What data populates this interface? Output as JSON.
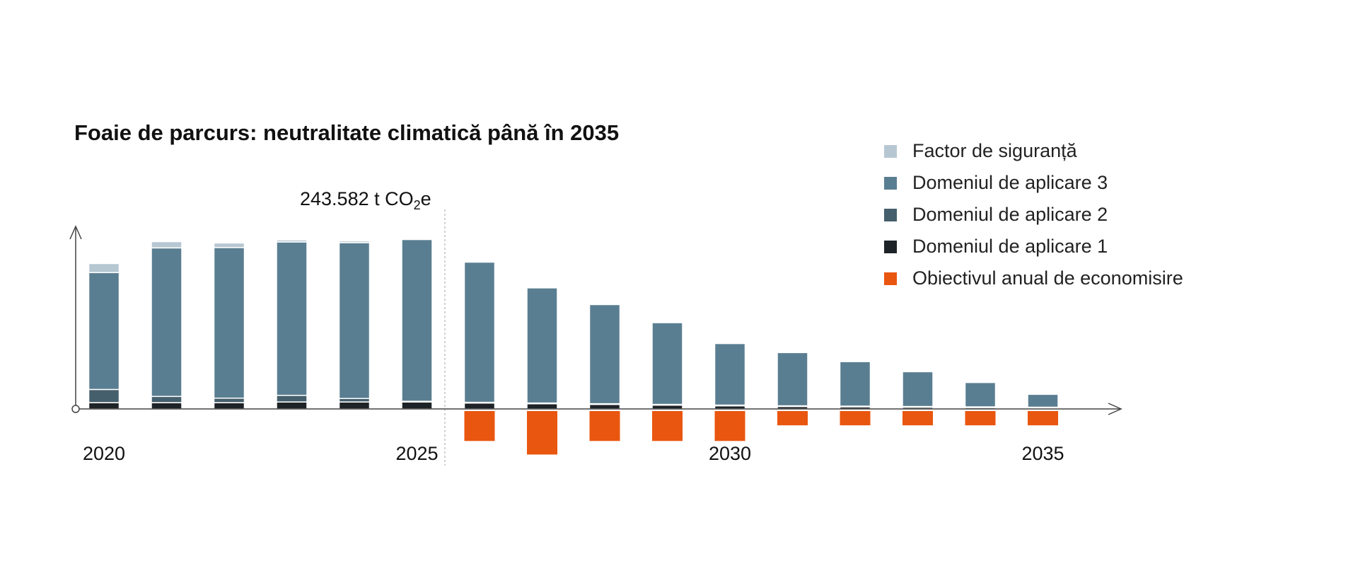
{
  "chart_data": {
    "type": "bar",
    "title": "Foaie de parcurs: neutralitate climatică până în 2035",
    "annotation": {
      "prefix": "243.582 t CO",
      "subscript": "2",
      "suffix": "e"
    },
    "x_tick_labels": [
      "2020",
      "2025",
      "2030",
      "2035"
    ],
    "categories": [
      "2020",
      "2021",
      "2022",
      "2023",
      "2024",
      "2025",
      "2026",
      "2027",
      "2028",
      "2029",
      "2030",
      "2031",
      "2032",
      "2033",
      "2034",
      "2035"
    ],
    "ylim": [
      -60000,
      260000
    ],
    "legend_position": "top-right",
    "colors": {
      "safety": "#b7c7d2",
      "scope3": "#5a7e91",
      "scope2": "#455f6c",
      "scope1": "#1d2327",
      "savings": "#e9560f",
      "axis": "#444444",
      "divider": "#c4c4c4"
    },
    "legend": [
      {
        "key": "safety",
        "label": "Factor de siguranță"
      },
      {
        "key": "scope3",
        "label": "Domeniul de aplicare 3"
      },
      {
        "key": "scope2",
        "label": "Domeniul de aplicare 2"
      },
      {
        "key": "scope1",
        "label": "Domeniul de aplicare 1"
      },
      {
        "key": "savings",
        "label": "Obiectivul anual de economisire"
      }
    ],
    "series": [
      {
        "name": "Domeniul de aplicare 1",
        "key": "scope1",
        "values": [
          9000,
          9000,
          9000,
          10000,
          10000,
          10000,
          8500,
          7500,
          6500,
          5500,
          4500,
          3500,
          3000,
          2500,
          2000,
          1500
        ]
      },
      {
        "name": "Domeniul de aplicare 2",
        "key": "scope2",
        "values": [
          19000,
          9000,
          6500,
          9500,
          5000,
          1000,
          1000,
          1000,
          1000,
          1000,
          1000,
          1000,
          1000,
          1000,
          1000,
          1000
        ]
      },
      {
        "name": "Domeniul de aplicare 3",
        "key": "scope3",
        "values": [
          168000,
          213500,
          216500,
          220500,
          224000,
          232500,
          201500,
          165500,
          142500,
          117500,
          88500,
          76500,
          64000,
          50000,
          35000,
          18500
        ]
      },
      {
        "name": "Factor de siguranță",
        "key": "safety",
        "values": [
          13000,
          9000,
          6500,
          3000,
          2500,
          0,
          0,
          0,
          0,
          0,
          0,
          0,
          0,
          0,
          0,
          0
        ]
      },
      {
        "name": "Obiectivul anual de economisire",
        "key": "savings",
        "values": [
          0,
          0,
          0,
          0,
          0,
          0,
          -43000,
          -62500,
          -43000,
          -43000,
          -43000,
          -20500,
          -20500,
          -20500,
          -20500,
          -20500
        ]
      }
    ]
  }
}
